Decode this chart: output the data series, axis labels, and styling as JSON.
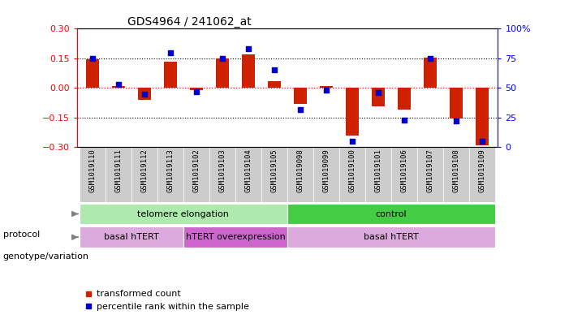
{
  "title": "GDS4964 / 241062_at",
  "samples": [
    "GSM1019110",
    "GSM1019111",
    "GSM1019112",
    "GSM1019113",
    "GSM1019102",
    "GSM1019103",
    "GSM1019104",
    "GSM1019105",
    "GSM1019098",
    "GSM1019099",
    "GSM1019100",
    "GSM1019101",
    "GSM1019106",
    "GSM1019107",
    "GSM1019108",
    "GSM1019109"
  ],
  "transformed_count": [
    0.145,
    0.01,
    -0.06,
    0.135,
    -0.01,
    0.15,
    0.17,
    0.035,
    -0.08,
    0.01,
    -0.24,
    -0.095,
    -0.11,
    0.155,
    -0.155,
    -0.29
  ],
  "percentile_rank": [
    75,
    53,
    45,
    80,
    47,
    75,
    83,
    65,
    32,
    48,
    5,
    46,
    23,
    75,
    22,
    5
  ],
  "ylim": [
    -0.3,
    0.3
  ],
  "yticks_left": [
    -0.3,
    -0.15,
    0.0,
    0.15,
    0.3
  ],
  "yticks_right": [
    0,
    25,
    50,
    75,
    100
  ],
  "protocol_groups": [
    {
      "label": "telomere elongation",
      "start": 0,
      "end": 8,
      "color": "#aeeaae"
    },
    {
      "label": "control",
      "start": 8,
      "end": 16,
      "color": "#44cc44"
    }
  ],
  "genotype_groups": [
    {
      "label": "basal hTERT",
      "start": 0,
      "end": 4,
      "color": "#ddaadd"
    },
    {
      "label": "hTERT overexpression",
      "start": 4,
      "end": 8,
      "color": "#cc66cc"
    },
    {
      "label": "basal hTERT",
      "start": 8,
      "end": 16,
      "color": "#ddaadd"
    }
  ],
  "bar_color": "#cc2200",
  "dot_color": "#0000cc",
  "label_protocol": "protocol",
  "label_genotype": "genotype/variation",
  "legend_transformed": "transformed count",
  "legend_percentile": "percentile rank within the sample",
  "xlabel_bg": "#cccccc"
}
